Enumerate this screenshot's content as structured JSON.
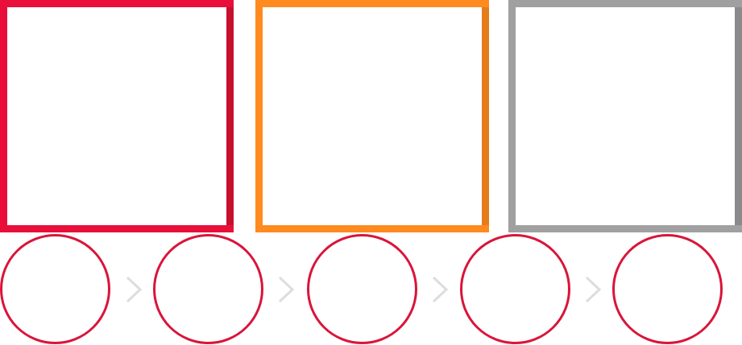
{
  "colors": {
    "card_1_border": "#e8103a",
    "card_1_shade": "#c8102e",
    "card_2_border": "#ff8a1f",
    "card_2_shade": "#e67b1a",
    "card_3_border": "#a0a0a0",
    "card_3_shade": "#8a8a8a",
    "circle_border": "#d9153a",
    "chevron": "#dddddd"
  },
  "cards": [
    {
      "name": "card-red",
      "text": ""
    },
    {
      "name": "card-orange",
      "text": ""
    },
    {
      "name": "card-gray",
      "text": ""
    }
  ],
  "steps": [
    {
      "name": "step-1",
      "text": ""
    },
    {
      "name": "step-2",
      "text": ""
    },
    {
      "name": "step-3",
      "text": ""
    },
    {
      "name": "step-4",
      "text": ""
    },
    {
      "name": "step-5",
      "text": ""
    }
  ],
  "connectors": [
    {
      "icon": "chevron-right-icon"
    },
    {
      "icon": "chevron-right-icon"
    },
    {
      "icon": "chevron-right-icon"
    },
    {
      "icon": "chevron-right-icon"
    }
  ]
}
